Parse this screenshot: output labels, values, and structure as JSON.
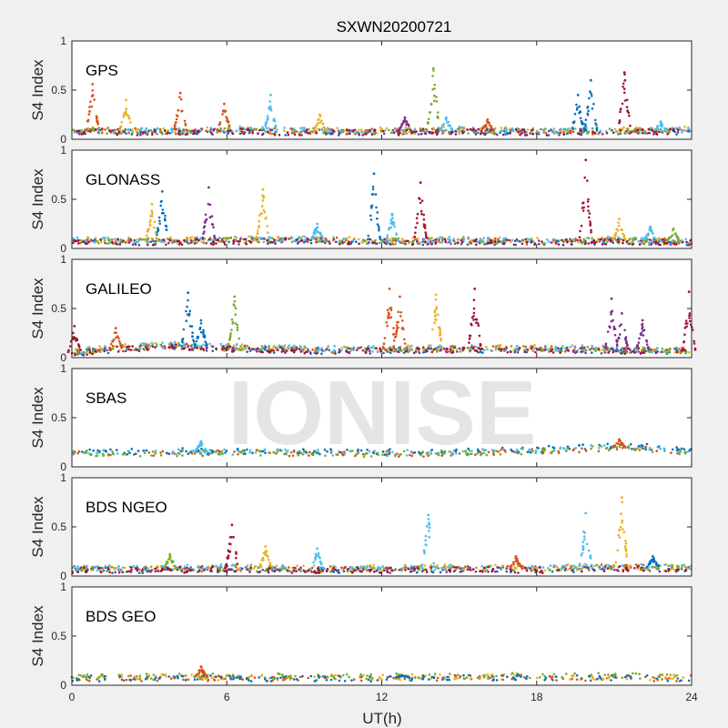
{
  "figure": {
    "title": "SXWN20200721",
    "xlabel": "UT(h)",
    "watermark": "IONISE",
    "background": "#f0f0f0",
    "axes_background": "#ffffff"
  },
  "chart_data": [
    {
      "type": "scatter",
      "panel_label": "GPS",
      "ylabel": "S4 Index",
      "xlim": [
        0,
        24
      ],
      "ylim": [
        0,
        1
      ],
      "xticks": [
        0,
        6,
        12,
        18,
        24
      ],
      "yticks": [
        0,
        0.5,
        1
      ],
      "x_ticklabels": [
        "",
        "",
        "",
        "",
        ""
      ],
      "y_ticklabels": [
        "0",
        "0.5",
        "1"
      ],
      "baseline": [
        [
          0,
          0.09
        ],
        [
          3,
          0.08
        ],
        [
          6,
          0.09
        ],
        [
          9,
          0.08
        ],
        [
          12,
          0.08
        ],
        [
          15,
          0.09
        ],
        [
          18,
          0.08
        ],
        [
          21,
          0.08
        ],
        [
          24,
          0.09
        ]
      ],
      "peaks": [
        [
          0.8,
          0.56,
          "#d95319"
        ],
        [
          2.1,
          0.4,
          "#edb120"
        ],
        [
          4.2,
          0.47,
          "#d95319"
        ],
        [
          5.9,
          0.36,
          "#d95319"
        ],
        [
          7.7,
          0.45,
          "#4dbeee"
        ],
        [
          9.6,
          0.25,
          "#edb120"
        ],
        [
          12.9,
          0.22,
          "#7e2f8e"
        ],
        [
          14.0,
          0.72,
          "#77ac30"
        ],
        [
          14.5,
          0.22,
          "#4dbeee"
        ],
        [
          16.1,
          0.2,
          "#d95319"
        ],
        [
          19.6,
          0.45,
          "#0072bd"
        ],
        [
          20.1,
          0.6,
          "#0072bd"
        ],
        [
          21.4,
          0.68,
          "#a2142f"
        ],
        [
          22.8,
          0.18,
          "#4dbeee"
        ]
      ],
      "series_colors": [
        "#0072bd",
        "#d95319",
        "#edb120",
        "#7e2f8e",
        "#77ac30",
        "#4dbeee",
        "#a2142f"
      ]
    },
    {
      "type": "scatter",
      "panel_label": "GLONASS",
      "ylabel": "S4 Index",
      "xlim": [
        0,
        24
      ],
      "ylim": [
        0,
        1
      ],
      "xticks": [
        0,
        6,
        12,
        18,
        24
      ],
      "yticks": [
        0,
        0.5,
        1
      ],
      "x_ticklabels": [
        "",
        "",
        "",
        "",
        ""
      ],
      "y_ticklabels": [
        "0",
        "0.5",
        "1"
      ],
      "baseline": [
        [
          0,
          0.08
        ],
        [
          3,
          0.07
        ],
        [
          6,
          0.08
        ],
        [
          9,
          0.09
        ],
        [
          12,
          0.07
        ],
        [
          15,
          0.08
        ],
        [
          18,
          0.07
        ],
        [
          21,
          0.08
        ],
        [
          24,
          0.07
        ]
      ],
      "peaks": [
        [
          3.1,
          0.45,
          "#edb120"
        ],
        [
          3.5,
          0.58,
          "#0072bd"
        ],
        [
          5.3,
          0.62,
          "#7e2f8e"
        ],
        [
          7.4,
          0.6,
          "#edb120"
        ],
        [
          9.5,
          0.25,
          "#4dbeee"
        ],
        [
          11.7,
          0.76,
          "#0072bd"
        ],
        [
          12.4,
          0.35,
          "#4dbeee"
        ],
        [
          13.5,
          0.67,
          "#a2142f"
        ],
        [
          19.9,
          0.9,
          "#a2142f"
        ],
        [
          21.2,
          0.3,
          "#edb120"
        ],
        [
          22.4,
          0.22,
          "#4dbeee"
        ],
        [
          23.3,
          0.2,
          "#77ac30"
        ]
      ],
      "series_colors": [
        "#0072bd",
        "#d95319",
        "#edb120",
        "#7e2f8e",
        "#77ac30",
        "#4dbeee",
        "#a2142f"
      ]
    },
    {
      "type": "scatter",
      "panel_label": "GALILEO",
      "ylabel": "S4 Index",
      "xlim": [
        0,
        24
      ],
      "ylim": [
        0,
        1
      ],
      "xticks": [
        0,
        6,
        12,
        18,
        24
      ],
      "yticks": [
        0,
        0.5,
        1
      ],
      "x_ticklabels": [
        "",
        "",
        "",
        "",
        ""
      ],
      "y_ticklabels": [
        "0",
        "0.5",
        "1"
      ],
      "baseline": [
        [
          0,
          0.05
        ],
        [
          2,
          0.1
        ],
        [
          4,
          0.12
        ],
        [
          6,
          0.1
        ],
        [
          9,
          0.08
        ],
        [
          12,
          0.08
        ],
        [
          15,
          0.09
        ],
        [
          18,
          0.09
        ],
        [
          21,
          0.08
        ],
        [
          24,
          0.07
        ]
      ],
      "peaks": [
        [
          0.1,
          0.32,
          "#a2142f"
        ],
        [
          1.7,
          0.3,
          "#d95319"
        ],
        [
          4.5,
          0.66,
          "#0072bd"
        ],
        [
          5.0,
          0.38,
          "#0072bd"
        ],
        [
          6.3,
          0.62,
          "#77ac30"
        ],
        [
          12.3,
          0.7,
          "#d95319"
        ],
        [
          12.7,
          0.62,
          "#d95319"
        ],
        [
          14.1,
          0.64,
          "#edb120"
        ],
        [
          15.6,
          0.7,
          "#a2142f"
        ],
        [
          20.9,
          0.6,
          "#7e2f8e"
        ],
        [
          21.3,
          0.45,
          "#7e2f8e"
        ],
        [
          22.1,
          0.38,
          "#7e2f8e"
        ],
        [
          23.9,
          0.67,
          "#a2142f"
        ]
      ],
      "series_colors": [
        "#0072bd",
        "#d95319",
        "#edb120",
        "#7e2f8e",
        "#77ac30",
        "#4dbeee",
        "#a2142f"
      ]
    },
    {
      "type": "scatter",
      "panel_label": "SBAS",
      "ylabel": "S4 Index",
      "xlim": [
        0,
        24
      ],
      "ylim": [
        0,
        1
      ],
      "xticks": [
        0,
        6,
        12,
        18,
        24
      ],
      "yticks": [
        0,
        0.5,
        1
      ],
      "x_ticklabels": [
        "",
        "",
        "",
        "",
        ""
      ],
      "y_ticklabels": [
        "0",
        "0.5",
        "1"
      ],
      "baseline": [
        [
          0,
          0.14
        ],
        [
          4,
          0.15
        ],
        [
          8,
          0.15
        ],
        [
          12,
          0.14
        ],
        [
          16,
          0.15
        ],
        [
          18,
          0.17
        ],
        [
          20,
          0.19
        ],
        [
          22,
          0.2
        ],
        [
          24,
          0.15
        ]
      ],
      "peaks": [
        [
          5.0,
          0.26,
          "#4dbeee"
        ],
        [
          21.2,
          0.28,
          "#d95319"
        ]
      ],
      "series_colors": [
        "#d95319",
        "#4dbeee",
        "#0072bd",
        "#77ac30"
      ]
    },
    {
      "type": "scatter",
      "panel_label": "BDS NGEO",
      "ylabel": "S4 Index",
      "xlim": [
        0,
        24
      ],
      "ylim": [
        0,
        1
      ],
      "xticks": [
        0,
        6,
        12,
        18,
        24
      ],
      "yticks": [
        0,
        0.5,
        1
      ],
      "x_ticklabels": [
        "",
        "",
        "",
        "",
        ""
      ],
      "y_ticklabels": [
        "0",
        "0.5",
        "1"
      ],
      "baseline": [
        [
          0,
          0.07
        ],
        [
          3,
          0.07
        ],
        [
          6,
          0.08
        ],
        [
          9,
          0.07
        ],
        [
          12,
          0.07
        ],
        [
          15,
          0.08
        ],
        [
          18,
          0.07
        ],
        [
          21,
          0.09
        ],
        [
          24,
          0.08
        ]
      ],
      "peaks": [
        [
          3.8,
          0.22,
          "#77ac30"
        ],
        [
          6.2,
          0.52,
          "#a2142f"
        ],
        [
          7.5,
          0.3,
          "#edb120"
        ],
        [
          9.5,
          0.28,
          "#4dbeee"
        ],
        [
          13.8,
          0.62,
          "#4dbeee"
        ],
        [
          17.2,
          0.2,
          "#d95319"
        ],
        [
          19.9,
          0.64,
          "#4dbeee"
        ],
        [
          21.3,
          0.8,
          "#edb120"
        ],
        [
          22.5,
          0.2,
          "#0072bd"
        ]
      ],
      "series_colors": [
        "#0072bd",
        "#d95319",
        "#edb120",
        "#7e2f8e",
        "#77ac30",
        "#4dbeee",
        "#a2142f"
      ]
    },
    {
      "type": "scatter",
      "panel_label": "BDS GEO",
      "ylabel": "S4 Index",
      "xlim": [
        0,
        24
      ],
      "ylim": [
        0,
        1
      ],
      "xticks": [
        0,
        6,
        12,
        18,
        24
      ],
      "yticks": [
        0,
        0.5,
        1
      ],
      "x_ticklabels": [
        "0",
        "6",
        "12",
        "18",
        "24"
      ],
      "y_ticklabels": [
        "0",
        "0.5",
        "1"
      ],
      "baseline": [
        [
          0,
          0.08
        ],
        [
          6,
          0.08
        ],
        [
          12,
          0.08
        ],
        [
          18,
          0.09
        ],
        [
          24,
          0.08
        ]
      ],
      "peaks": [
        [
          5.0,
          0.19,
          "#d95319"
        ],
        [
          12.8,
          0.1,
          "#0072bd"
        ]
      ],
      "series_colors": [
        "#d95319",
        "#edb120",
        "#77ac30",
        "#0072bd"
      ]
    }
  ]
}
